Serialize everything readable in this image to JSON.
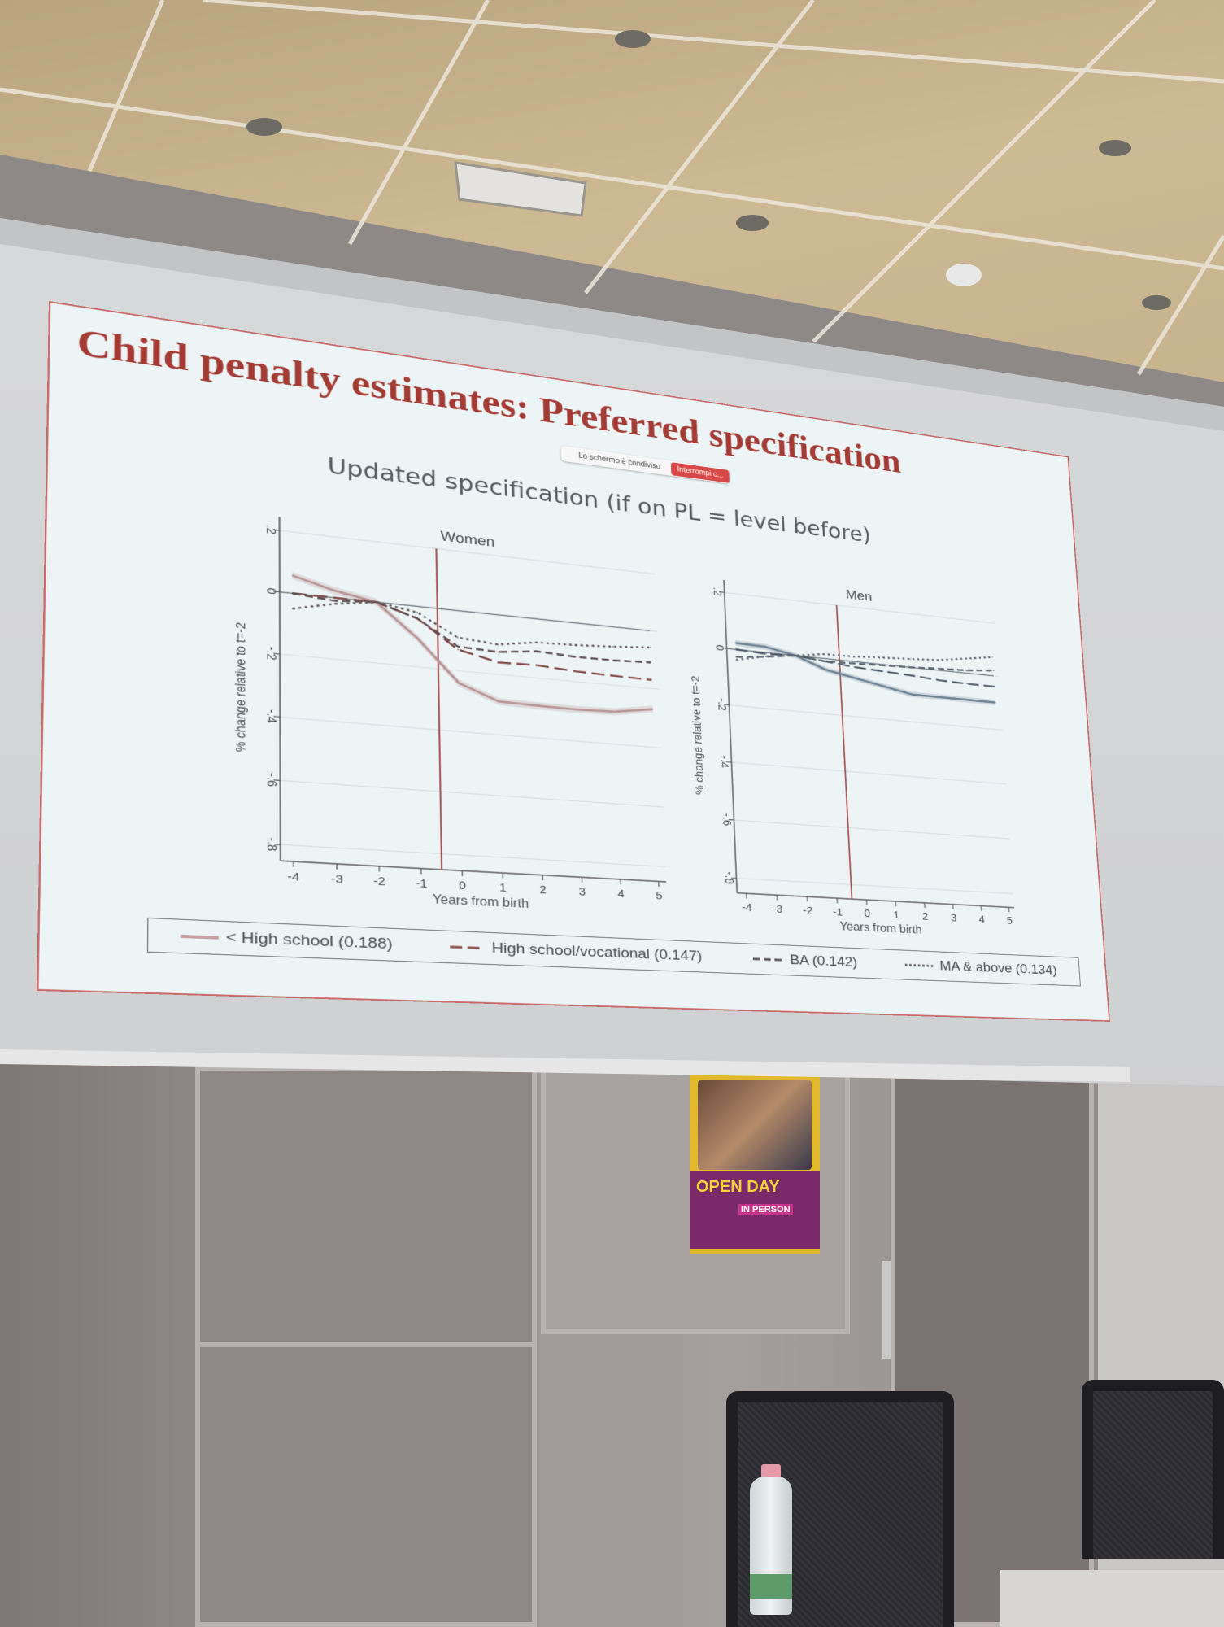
{
  "slide": {
    "title": "Child penalty estimates: Preferred specification",
    "subtitle": "Updated specification (if on PL = level before)",
    "title_color": "#a33a33",
    "background": "#edf4f6"
  },
  "screen_share": {
    "label": "Lo schermo è condiviso",
    "stop_button": "Interrompi c..."
  },
  "legend": [
    {
      "label": "< High school (0.188)",
      "style": "solid",
      "color": "#c4a2a4"
    },
    {
      "label": "High school/vocational (0.147)",
      "style": "long-dash",
      "color": "#8a4e4c"
    },
    {
      "label": "BA (0.142)",
      "style": "dash",
      "color": "#5a5052"
    },
    {
      "label": "MA & above (0.134)",
      "style": "dot",
      "color": "#5e5a5e"
    }
  ],
  "poster": {
    "headline": "OPEN DAY",
    "badge": "IN PERSON"
  },
  "chart_data": [
    {
      "type": "line",
      "title": "Women",
      "xlabel": "Years from birth",
      "ylabel": "% change relative to t=-2",
      "xlim": [
        -4.3,
        5.2
      ],
      "ylim": [
        -0.85,
        0.22
      ],
      "xticks": [
        "-4",
        "-3",
        "-2",
        "-1",
        "0",
        "1",
        "2",
        "3",
        "4",
        "5"
      ],
      "yticks": [
        ".2",
        "0",
        "-.2",
        "-.4",
        "-.6",
        "-.8"
      ],
      "grid": true,
      "reference_lines": {
        "x": -0.5,
        "y": 0
      },
      "reference_color": "#a85858",
      "x": [
        -4,
        -3,
        -2,
        -1,
        0,
        1,
        2,
        3,
        4,
        5
      ],
      "series": [
        {
          "name": "< High school (0.188)",
          "style": "solid",
          "color": "#b99596",
          "ci_band": 0.012,
          "values": [
            0.058,
            0.023,
            0,
            -0.106,
            -0.24,
            -0.29,
            -0.293,
            -0.294,
            -0.29,
            -0.27
          ]
        },
        {
          "name": "High school/vocational (0.147)",
          "style": "long-dash",
          "color": "#7f4644",
          "values": [
            0,
            0,
            0,
            -0.04,
            -0.13,
            -0.16,
            -0.157,
            -0.165,
            -0.168,
            -0.17
          ]
        },
        {
          "name": "BA (0.142)",
          "style": "dash",
          "color": "#5e4e50",
          "values": [
            0,
            -0.01,
            0,
            -0.04,
            -0.12,
            -0.125,
            -0.11,
            -0.116,
            -0.115,
            -0.11
          ]
        },
        {
          "name": "MA & above (0.134)",
          "style": "dot",
          "color": "#625a5e",
          "values": [
            -0.05,
            -0.02,
            0,
            -0.02,
            -0.09,
            -0.1,
            -0.08,
            -0.076,
            -0.068,
            -0.058
          ]
        }
      ]
    },
    {
      "type": "line",
      "title": "Men",
      "xlabel": "Years from birth",
      "ylabel": "% change relative to t=-2",
      "xlim": [
        -4.3,
        5.2
      ],
      "ylim": [
        -0.85,
        0.22
      ],
      "xticks": [
        "-4",
        "-3",
        "-2",
        "-1",
        "0",
        "1",
        "2",
        "3",
        "4",
        "5"
      ],
      "yticks": [
        ".2",
        "0",
        "-.2",
        "-.4",
        "-.6",
        "-.8"
      ],
      "grid": true,
      "reference_lines": {
        "x": -0.5,
        "y": 0
      },
      "reference_color": "#a85858",
      "x": [
        -4,
        -3,
        -2,
        -1,
        0,
        1,
        2,
        3,
        4,
        5
      ],
      "series": [
        {
          "name": "< High school (0.188)",
          "style": "solid",
          "color": "#6f8497",
          "ci_band": 0.01,
          "values": [
            0.023,
            0.02,
            0,
            -0.04,
            -0.06,
            -0.08,
            -0.1,
            -0.1,
            -0.1,
            -0.1
          ]
        },
        {
          "name": "High school/vocational (0.147)",
          "style": "long-dash",
          "color": "#4c5a68",
          "values": [
            0,
            -0.005,
            0,
            -0.01,
            -0.02,
            -0.025,
            -0.03,
            -0.037,
            -0.04,
            -0.04
          ]
        },
        {
          "name": "BA (0.142)",
          "style": "dash",
          "color": "#58636e",
          "values": [
            -0.027,
            -0.015,
            0,
            -0.01,
            -0.007,
            -0.003,
            0,
            0.006,
            0.01,
            0.02
          ]
        },
        {
          "name": "MA & above (0.134)",
          "style": "dot",
          "color": "#646d78",
          "values": [
            -0.037,
            -0.014,
            0,
            0.016,
            0.018,
            0.025,
            0.031,
            0.038,
            0.054,
            0.07
          ]
        }
      ]
    }
  ]
}
